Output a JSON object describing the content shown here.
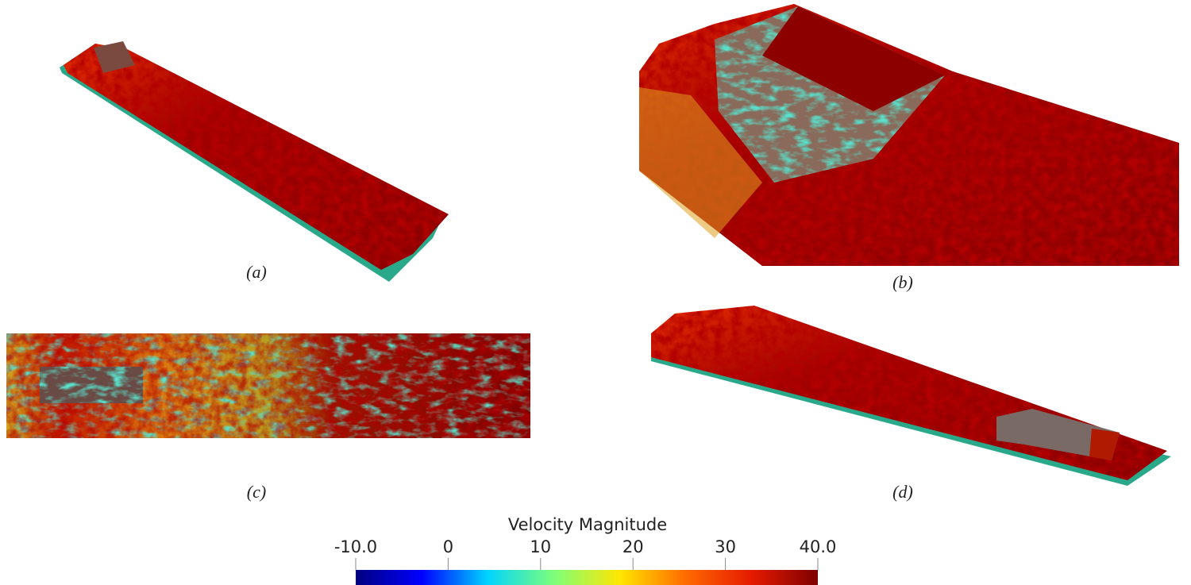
{
  "panels": [
    {
      "label": "(a)"
    },
    {
      "label": "(b)"
    },
    {
      "label": "(c)"
    },
    {
      "label": "(d)"
    }
  ],
  "colorbar": {
    "title": "Velocity Magnitude",
    "lim": [
      -10,
      40
    ],
    "ticks": [
      {
        "value": -10,
        "label": "-10.0"
      },
      0,
      10,
      20,
      30,
      {
        "value": 40,
        "label": "40.0"
      }
    ],
    "colormap": [
      "#00007f",
      "#0000ff",
      "#00d4ff",
      "#7dff7a",
      "#ffe600",
      "#ff6a00",
      "#e41a00",
      "#7f0000"
    ]
  }
}
